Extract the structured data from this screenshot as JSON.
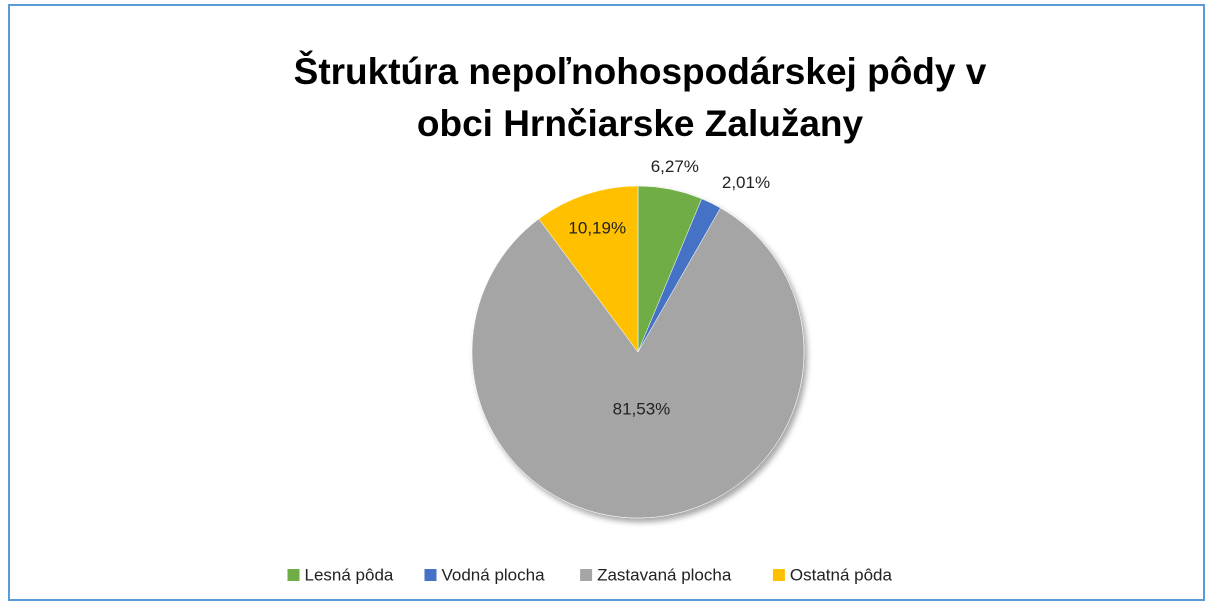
{
  "chart_data": {
    "type": "pie",
    "title": "Štruktúra nepoľnohospodárskej pôdy v obci Hrnčiarske Zalužany",
    "categories": [
      "Lesná pôda",
      "Vodná plocha",
      "Zastavaná plocha",
      "Ostatná pôda"
    ],
    "values": [
      6.27,
      2.01,
      81.53,
      10.19
    ],
    "value_labels": [
      "6,27%",
      "2,01%",
      "81,53%",
      "10,19%"
    ],
    "colors": [
      "#70ad47",
      "#4472c4",
      "#a5a5a5",
      "#ffc000"
    ],
    "legend": "bottom"
  }
}
